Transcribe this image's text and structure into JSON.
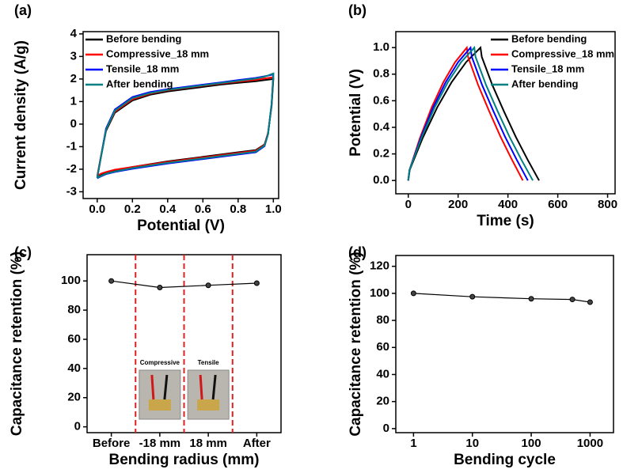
{
  "chart_data": [
    {
      "type": "line",
      "label": "(a)",
      "xlabel": "Potential (V)",
      "ylabel": "Current density (A/g)",
      "xlim": [
        -0.08,
        1.03
      ],
      "ylim": [
        -3.3,
        4.1
      ],
      "xticks": [
        {
          "value": 0,
          "label": "0.0"
        },
        0.2,
        0.4,
        0.6,
        0.8,
        {
          "value": 1,
          "label": "1.0"
        }
      ],
      "yticks": [
        -3,
        -2,
        -1,
        0,
        1,
        2,
        3,
        4
      ],
      "legend": "upper left",
      "series": [
        {
          "name": "Before bending",
          "color": "#000000",
          "x": [
            0,
            0.02,
            0.05,
            0.1,
            0.2,
            0.3,
            0.4,
            0.5,
            0.6,
            0.7,
            0.8,
            0.9,
            0.95,
            1.0,
            0.99,
            0.97,
            0.95,
            0.9,
            0.8,
            0.6,
            0.4,
            0.2,
            0.1,
            0.05,
            0.02,
            0
          ],
          "values": [
            -2.35,
            -1.5,
            -0.3,
            0.5,
            1.05,
            1.3,
            1.45,
            1.55,
            1.65,
            1.75,
            1.83,
            1.9,
            1.95,
            2.0,
            0.8,
            -0.4,
            -0.9,
            -1.15,
            -1.25,
            -1.45,
            -1.65,
            -1.9,
            -2.05,
            -2.15,
            -2.25,
            -2.35
          ]
        },
        {
          "name": "Compressive_18 mm",
          "color": "#ff0000",
          "x": [
            0,
            0.02,
            0.05,
            0.1,
            0.2,
            0.3,
            0.4,
            0.5,
            0.6,
            0.7,
            0.8,
            0.9,
            0.95,
            1.0,
            0.99,
            0.97,
            0.95,
            0.9,
            0.8,
            0.6,
            0.4,
            0.2,
            0.1,
            0.05,
            0.02,
            0
          ],
          "values": [
            -2.3,
            -1.45,
            -0.25,
            0.55,
            1.1,
            1.35,
            1.5,
            1.6,
            1.7,
            1.8,
            1.88,
            1.96,
            2.02,
            2.08,
            0.85,
            -0.4,
            -0.92,
            -1.18,
            -1.28,
            -1.48,
            -1.68,
            -1.9,
            -2.02,
            -2.12,
            -2.2,
            -2.3
          ]
        },
        {
          "name": "Tensile_18 mm",
          "color": "#0000ff",
          "x": [
            0,
            0.02,
            0.05,
            0.1,
            0.2,
            0.3,
            0.4,
            0.5,
            0.6,
            0.7,
            0.8,
            0.9,
            0.95,
            1.0,
            0.99,
            0.97,
            0.95,
            0.9,
            0.8,
            0.6,
            0.4,
            0.2,
            0.1,
            0.05,
            0.02,
            0
          ],
          "values": [
            -2.4,
            -1.5,
            -0.2,
            0.65,
            1.2,
            1.42,
            1.55,
            1.65,
            1.75,
            1.85,
            1.95,
            2.05,
            2.12,
            2.2,
            0.9,
            -0.45,
            -0.98,
            -1.25,
            -1.35,
            -1.55,
            -1.75,
            -1.98,
            -2.12,
            -2.22,
            -2.32,
            -2.4
          ]
        },
        {
          "name": "After bending",
          "color": "#008080",
          "x": [
            0,
            0.02,
            0.05,
            0.1,
            0.2,
            0.3,
            0.4,
            0.5,
            0.6,
            0.7,
            0.8,
            0.9,
            0.95,
            1.0,
            0.99,
            0.97,
            0.95,
            0.9,
            0.8,
            0.6,
            0.4,
            0.2,
            0.1,
            0.05,
            0.02,
            0
          ],
          "values": [
            -2.38,
            -1.5,
            -0.25,
            0.6,
            1.15,
            1.38,
            1.52,
            1.62,
            1.72,
            1.82,
            1.92,
            2.02,
            2.1,
            2.25,
            0.9,
            -0.45,
            -0.95,
            -1.22,
            -1.32,
            -1.52,
            -1.72,
            -1.95,
            -2.1,
            -2.2,
            -2.3,
            -2.38
          ]
        }
      ]
    },
    {
      "type": "line",
      "label": "(b)",
      "xlabel": "Time (s)",
      "ylabel": "Potential (V)",
      "xlim": [
        -50,
        830
      ],
      "ylim": [
        -0.1,
        1.12
      ],
      "xticks": [
        0,
        200,
        400,
        600,
        800
      ],
      "yticks": [
        {
          "value": 0,
          "label": "0.0"
        },
        0.2,
        0.4,
        0.6,
        0.8,
        {
          "value": 1,
          "label": "1.0"
        }
      ],
      "legend": "upper right",
      "series": [
        {
          "name": "Before bending",
          "color": "#000000",
          "x": [
            0,
            6,
            58,
            116,
            174,
            232,
            290,
            295,
            337,
            384,
            431,
            478,
            525
          ],
          "values": [
            0,
            0.08,
            0.32,
            0.55,
            0.74,
            0.89,
            1.0,
            0.93,
            0.72,
            0.52,
            0.33,
            0.16,
            0
          ]
        },
        {
          "name": "Compressive_18 mm",
          "color": "#ff0000",
          "x": [
            0,
            5,
            47,
            94,
            141,
            188,
            235,
            240,
            280,
            325,
            370,
            415,
            460
          ],
          "values": [
            0,
            0.08,
            0.32,
            0.55,
            0.74,
            0.89,
            1.0,
            0.93,
            0.72,
            0.52,
            0.33,
            0.16,
            0
          ]
        },
        {
          "name": "Tensile_18 mm",
          "color": "#0000ff",
          "x": [
            0,
            5,
            50,
            100,
            150,
            200,
            250,
            255,
            296,
            342,
            388,
            434,
            480
          ],
          "values": [
            0,
            0.08,
            0.32,
            0.55,
            0.74,
            0.89,
            1.0,
            0.93,
            0.72,
            0.52,
            0.33,
            0.16,
            0
          ]
        },
        {
          "name": "After bending",
          "color": "#008080",
          "x": [
            0,
            5,
            53,
            106,
            159,
            212,
            265,
            270,
            312,
            359,
            406,
            453,
            500
          ],
          "values": [
            0,
            0.08,
            0.32,
            0.55,
            0.74,
            0.89,
            1.0,
            0.93,
            0.72,
            0.52,
            0.33,
            0.16,
            0
          ]
        }
      ]
    },
    {
      "type": "line",
      "label": "(c)",
      "xlabel": "Bending radius (mm)",
      "ylabel": "Capacitance retention (%)",
      "categories": [
        "Before",
        "-18 mm",
        "18 mm",
        "After"
      ],
      "values": [
        100,
        95.5,
        97,
        98.5
      ],
      "color": "#000000",
      "markers": true,
      "ylim": [
        -4,
        118
      ],
      "yticks": [
        0,
        20,
        40,
        60,
        80,
        100
      ],
      "annotations": [
        "Compressive",
        "Tensile"
      ]
    },
    {
      "type": "line",
      "label": "(d)",
      "xlabel": "Bending cycle",
      "ylabel": "Capacitance retention (%)",
      "x": [
        1,
        10,
        100,
        500,
        1000
      ],
      "values": [
        100,
        97.5,
        96,
        95.5,
        93.5
      ],
      "color": "#000000",
      "markers": true,
      "xscale": "log",
      "xlim": [
        0.5,
        2500
      ],
      "xticks": [
        1,
        10,
        100,
        1000
      ],
      "ylim": [
        -3,
        128
      ],
      "yticks": [
        0,
        20,
        40,
        60,
        80,
        100,
        120
      ]
    }
  ]
}
